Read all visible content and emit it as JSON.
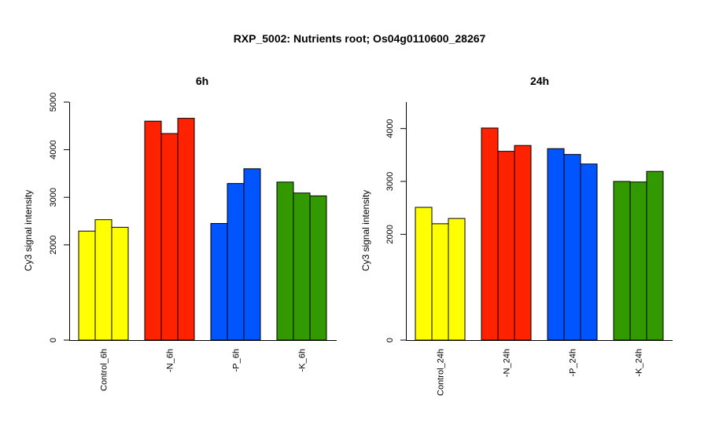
{
  "title": "RXP_5002: Nutrients root; Os04g0110600_28267",
  "chart_data": [
    {
      "type": "bar",
      "title": "6h",
      "ylabel": "Cy3 signal intensity",
      "ylim": [
        0,
        5000
      ],
      "yticks": [
        "0",
        "2000",
        "3000",
        "4000",
        "5000"
      ],
      "categories": [
        "Control_6h",
        "-N_6h",
        "-P_6h",
        "-K_6h"
      ],
      "colors": [
        "#ffff00",
        "#ff2200",
        "#0055ff",
        "#339900"
      ],
      "groups": [
        {
          "name": "Control_6h",
          "values": [
            2290,
            2530,
            2370
          ]
        },
        {
          "name": "-N_6h",
          "values": [
            4600,
            4340,
            4660
          ]
        },
        {
          "name": "-P_6h",
          "values": [
            2450,
            3290,
            3600
          ]
        },
        {
          "name": "-K_6h",
          "values": [
            3320,
            3090,
            3030
          ]
        }
      ]
    },
    {
      "type": "bar",
      "title": "24h",
      "ylabel": "Cy3 signal intensity",
      "ylim": [
        0,
        4500
      ],
      "yticks": [
        "0",
        "2000",
        "3000",
        "4000"
      ],
      "categories": [
        "Control_24h",
        "-N_24h",
        "-P_24h",
        "-K_24h"
      ],
      "colors": [
        "#ffff00",
        "#ff2200",
        "#0055ff",
        "#339900"
      ],
      "groups": [
        {
          "name": "Control_24h",
          "values": [
            2510,
            2200,
            2300
          ]
        },
        {
          "name": "-N_24h",
          "values": [
            4010,
            3570,
            3680
          ]
        },
        {
          "name": "-P_24h",
          "values": [
            3620,
            3510,
            3330
          ]
        },
        {
          "name": "-K_24h",
          "values": [
            3000,
            2990,
            3190
          ]
        }
      ]
    }
  ]
}
